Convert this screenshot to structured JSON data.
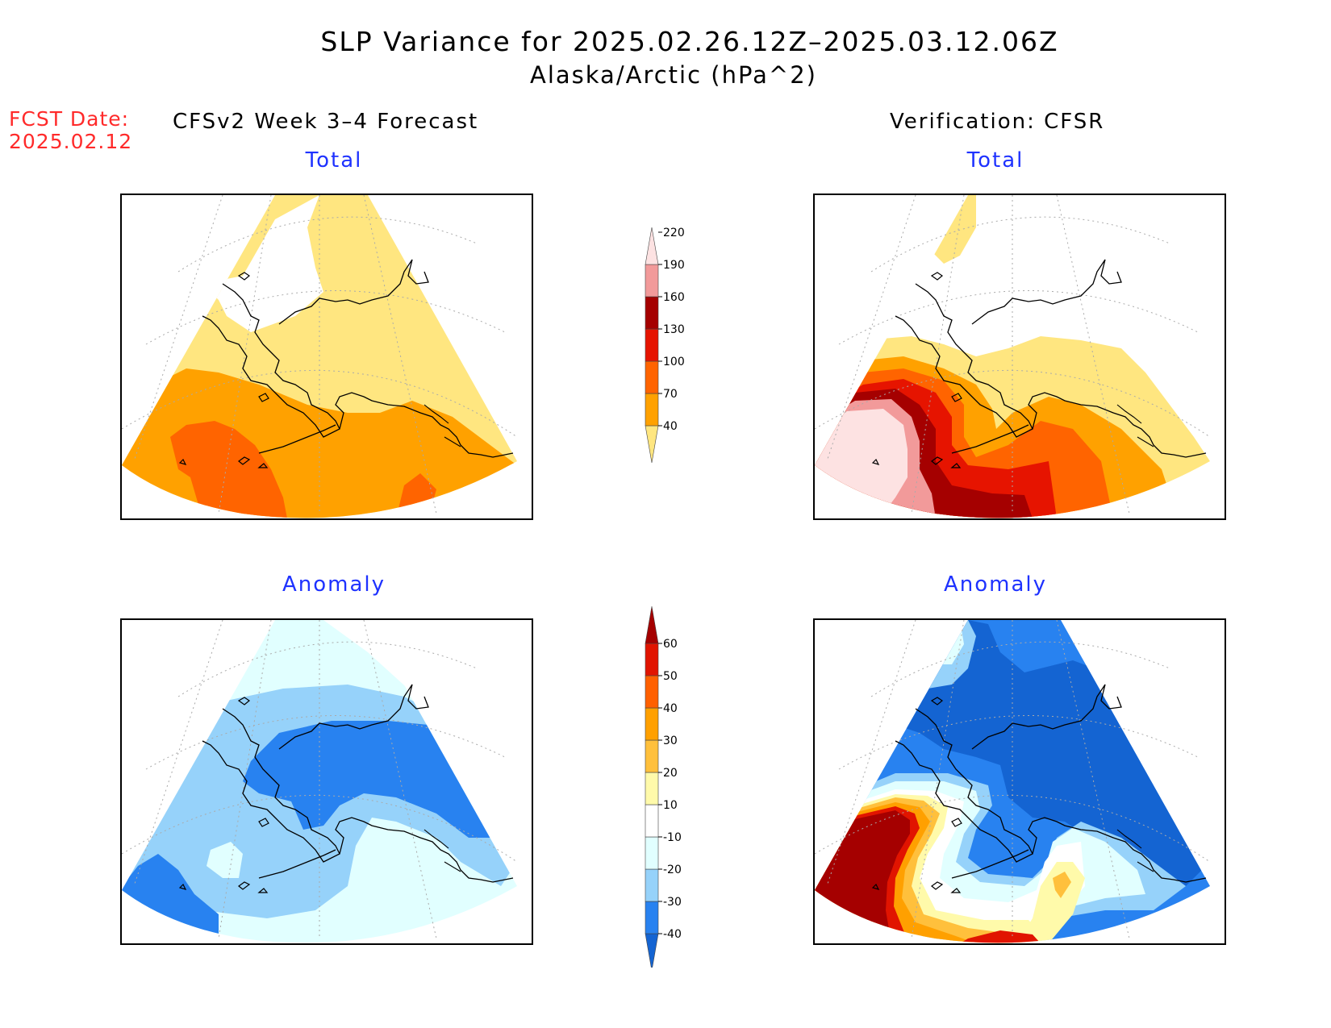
{
  "title": "SLP Variance for 2025.02.26.12Z–2025.03.12.06Z",
  "subtitle": "Alaska/Arctic (hPa^2)",
  "fcst_label": "FCST Date:",
  "fcst_date": "2025.02.12",
  "left_column_title": "CFSv2 Week 3–4 Forecast",
  "right_column_title": "Verification: CFSR",
  "panels": {
    "forecast_total": {
      "title": "Total"
    },
    "verification_total": {
      "title": "Total"
    },
    "forecast_anomaly": {
      "title": "Anomaly"
    },
    "verification_anomaly": {
      "title": "Anomaly"
    }
  },
  "colorbar_total": {
    "levels": [
      "40",
      "70",
      "100",
      "130",
      "160",
      "190",
      "220"
    ],
    "colors": [
      "#ffe680",
      "#ffa100",
      "#ff6400",
      "#e61400",
      "#a50000",
      "#f29a9a",
      "#fde2e2"
    ]
  },
  "colorbar_anomaly": {
    "levels": [
      "-40",
      "-30",
      "-20",
      "-10",
      "10",
      "20",
      "30",
      "40",
      "50",
      "60"
    ],
    "colors": [
      "#1464d2",
      "#2882f0",
      "#96d2fa",
      "#e1ffff",
      "#ffffff",
      "#fffaaa",
      "#ffc03c",
      "#ffa000",
      "#ff6000",
      "#e11400",
      "#a50000"
    ]
  },
  "colors": {
    "title_text": "#000000",
    "panel_title": "#1e32ff",
    "fcst_text": "#ff2a2a"
  }
}
